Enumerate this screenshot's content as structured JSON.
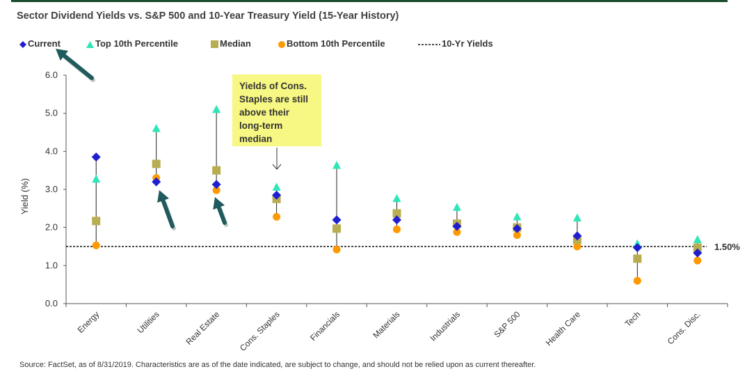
{
  "title": "Sector Dividend Yields vs. S&P 500 and 10-Year Treasury Yield (15-Year History)",
  "source": "Source: FactSet, as of 8/31/2019. Characteristics are as of the date indicated, are subject to change, and should not be relied upon as current thereafter.",
  "callout": "Yields of Cons. Staples are still above their long-term median",
  "legend": {
    "current": "Current",
    "top": "Top 10th Percentile",
    "median": "Median",
    "bottom": "Bottom 10th Percentile",
    "ten_yr": "10-Yr Yields"
  },
  "colors": {
    "current": "#1f1fd0",
    "top": "#2ee6b8",
    "median": "#b9ad52",
    "bottom": "#ff9900",
    "arrow": "#1f5a5c",
    "callout_bg": "#f7f783",
    "top_bar": "#1a4d2e"
  },
  "chart_data": {
    "type": "scatter",
    "ylabel": "Yield (%)",
    "xlabel": "",
    "ylim": [
      0,
      6
    ],
    "yticks": [
      "0.0",
      "1.0",
      "2.0",
      "3.0",
      "4.0",
      "5.0",
      "6.0"
    ],
    "categories": [
      "Energy",
      "Utilities",
      "Real Estate",
      "Cons. Staples",
      "Financials",
      "Materials",
      "Industrials",
      "S&P 500",
      "Health Care",
      "Tech",
      "Cons. Disc."
    ],
    "series": [
      {
        "name": "Current",
        "key": "current",
        "values": [
          3.85,
          3.2,
          3.13,
          2.85,
          2.2,
          2.2,
          2.03,
          1.97,
          1.78,
          1.47,
          1.33
        ]
      },
      {
        "name": "Top 10th Percentile",
        "key": "top",
        "values": [
          3.27,
          4.6,
          5.1,
          3.06,
          3.63,
          2.76,
          2.53,
          2.28,
          2.25,
          1.57,
          1.68
        ]
      },
      {
        "name": "Median",
        "key": "median",
        "values": [
          2.17,
          3.67,
          3.5,
          2.75,
          1.97,
          2.37,
          2.1,
          2.0,
          1.67,
          1.18,
          1.47
        ]
      },
      {
        "name": "Bottom 10th Percentile",
        "key": "bottom",
        "values": [
          1.53,
          3.3,
          2.98,
          2.28,
          1.42,
          1.95,
          1.88,
          1.8,
          1.5,
          0.6,
          1.13
        ]
      }
    ],
    "reference_line": {
      "name": "10-Yr Yields",
      "value": 1.5,
      "label": "1.50%"
    },
    "annotation": "Yields of Cons. Staples are still above their long-term median",
    "highlight_arrows": [
      "Current",
      "Utilities",
      "Real Estate"
    ]
  }
}
